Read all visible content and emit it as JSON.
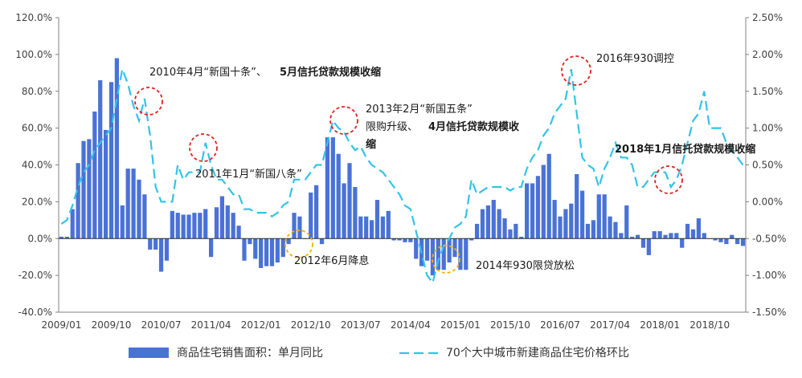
{
  "chart_data": {
    "type": "bar+line",
    "title": "",
    "x_labels": [
      "2009/01",
      "2009/10",
      "2010/07",
      "2011/04",
      "2012/01",
      "2012/10",
      "2013/07",
      "2014/04",
      "2015/01",
      "2015/10",
      "2016/07",
      "2017/04",
      "2018/01",
      "2018/10"
    ],
    "y_left": {
      "min": -40,
      "max": 120,
      "step": 20,
      "ticks": [
        "-40.0%",
        "-20.0%",
        "0.0%",
        "20.0%",
        "40.0%",
        "60.0%",
        "80.0%",
        "100.0%",
        "120.0%"
      ]
    },
    "y_right": {
      "min": -1.5,
      "max": 2.5,
      "step": 0.5,
      "ticks": [
        "-1.50%",
        "-1.00%",
        "-0.50%",
        "0.00%",
        "0.50%",
        "1.00%",
        "1.50%",
        "2.00%",
        "2.50%"
      ]
    },
    "series": [
      {
        "name": "商品住宅销售面积：单月同比",
        "type": "bar",
        "axis": "left",
        "color": "#4a72d6",
        "values": [
          1,
          1,
          16,
          41,
          53,
          54,
          69,
          86,
          59,
          85,
          98,
          18,
          38,
          38,
          32,
          24,
          -6,
          -6,
          -18,
          -12,
          15,
          14,
          13,
          13,
          14,
          14,
          16,
          -10,
          17,
          23,
          18,
          14,
          7,
          -12,
          -3,
          -11,
          -16,
          -15,
          -15,
          -13,
          -10,
          -3,
          14,
          12,
          0,
          25,
          29,
          -3,
          55,
          55,
          46,
          30,
          41,
          28,
          12,
          12,
          10,
          21,
          12,
          15,
          -1,
          -1,
          -2,
          -2,
          -11,
          -15,
          -12,
          -20,
          -17,
          -17,
          -13,
          -10,
          -17,
          -17,
          -1,
          8,
          16,
          18,
          21,
          16,
          11,
          5,
          8,
          1,
          30,
          30,
          34,
          40,
          46,
          21,
          12,
          16,
          19,
          35,
          26,
          8,
          10,
          24,
          24,
          12,
          9,
          3,
          18,
          1,
          2,
          -5,
          -9,
          4,
          4,
          2,
          3,
          3,
          -5,
          8,
          5,
          11,
          3,
          0,
          -1,
          -2,
          -3,
          2,
          -3,
          -4
        ]
      },
      {
        "name": "70个大中城市新建商品住宅价格环比",
        "type": "line",
        "axis": "right",
        "color": "#33c3e8",
        "dash": true,
        "values": [
          -0.3,
          -0.25,
          -0.05,
          0.2,
          0.4,
          0.5,
          0.7,
          0.8,
          0.9,
          1.0,
          1.4,
          1.8,
          1.6,
          1.3,
          1.1,
          1.4,
          0.9,
          0.2,
          0.0,
          0.0,
          0.0,
          0.5,
          0.3,
          0.4,
          0.4,
          0.4,
          0.8,
          0.5,
          0.3,
          0.3,
          0.2,
          0.1,
          0.1,
          -0.1,
          -0.1,
          -0.15,
          -0.15,
          -0.15,
          -0.2,
          -0.15,
          -0.05,
          0.0,
          0.3,
          0.3,
          0.3,
          0.4,
          0.5,
          0.5,
          0.8,
          1.1,
          1.0,
          0.95,
          0.8,
          0.7,
          0.75,
          0.6,
          0.5,
          0.45,
          0.4,
          0.3,
          0.2,
          0.1,
          -0.05,
          -0.1,
          -0.4,
          -0.7,
          -1.0,
          -1.1,
          -0.8,
          -0.6,
          -0.5,
          -0.35,
          -0.3,
          -0.2,
          0.3,
          0.1,
          0.15,
          0.2,
          0.2,
          0.2,
          0.2,
          0.15,
          0.2,
          0.2,
          0.45,
          0.6,
          0.7,
          0.9,
          1.0,
          1.2,
          1.3,
          1.4,
          1.8,
          1.2,
          0.6,
          0.5,
          0.45,
          0.2,
          0.45,
          0.6,
          0.8,
          0.6,
          0.6,
          0.5,
          0.2,
          0.2,
          0.3,
          0.4,
          0.4,
          0.4,
          0.2,
          0.3,
          0.5,
          0.8,
          1.1,
          1.2,
          1.5,
          1.0,
          1.0,
          1.0,
          0.8,
          0.7,
          0.6,
          0.5
        ]
      }
    ],
    "annotations": [
      {
        "text": "2010年4月“新国十条”、",
        "bold_text": "5月信托贷款规模收缩",
        "series_index": 15
      },
      {
        "text": "2011年1月“新国八条”",
        "series_index": 25
      },
      {
        "text": "2012年6月降息",
        "series_index": 43
      },
      {
        "text": "2013年2月“新国五条”",
        "line2": "限购升级、",
        "line2_bold": "4月信托贷款规模收",
        "line3_bold": "缩",
        "series_index": 50
      },
      {
        "text": "2014年930限贷放松",
        "series_index": 68
      },
      {
        "text": "2016年930调控",
        "series_index": 92
      },
      {
        "bold_text": "2018年1月信托贷款规模收缩",
        "series_index": 109
      }
    ],
    "grid": false,
    "legend_position": "bottom"
  }
}
